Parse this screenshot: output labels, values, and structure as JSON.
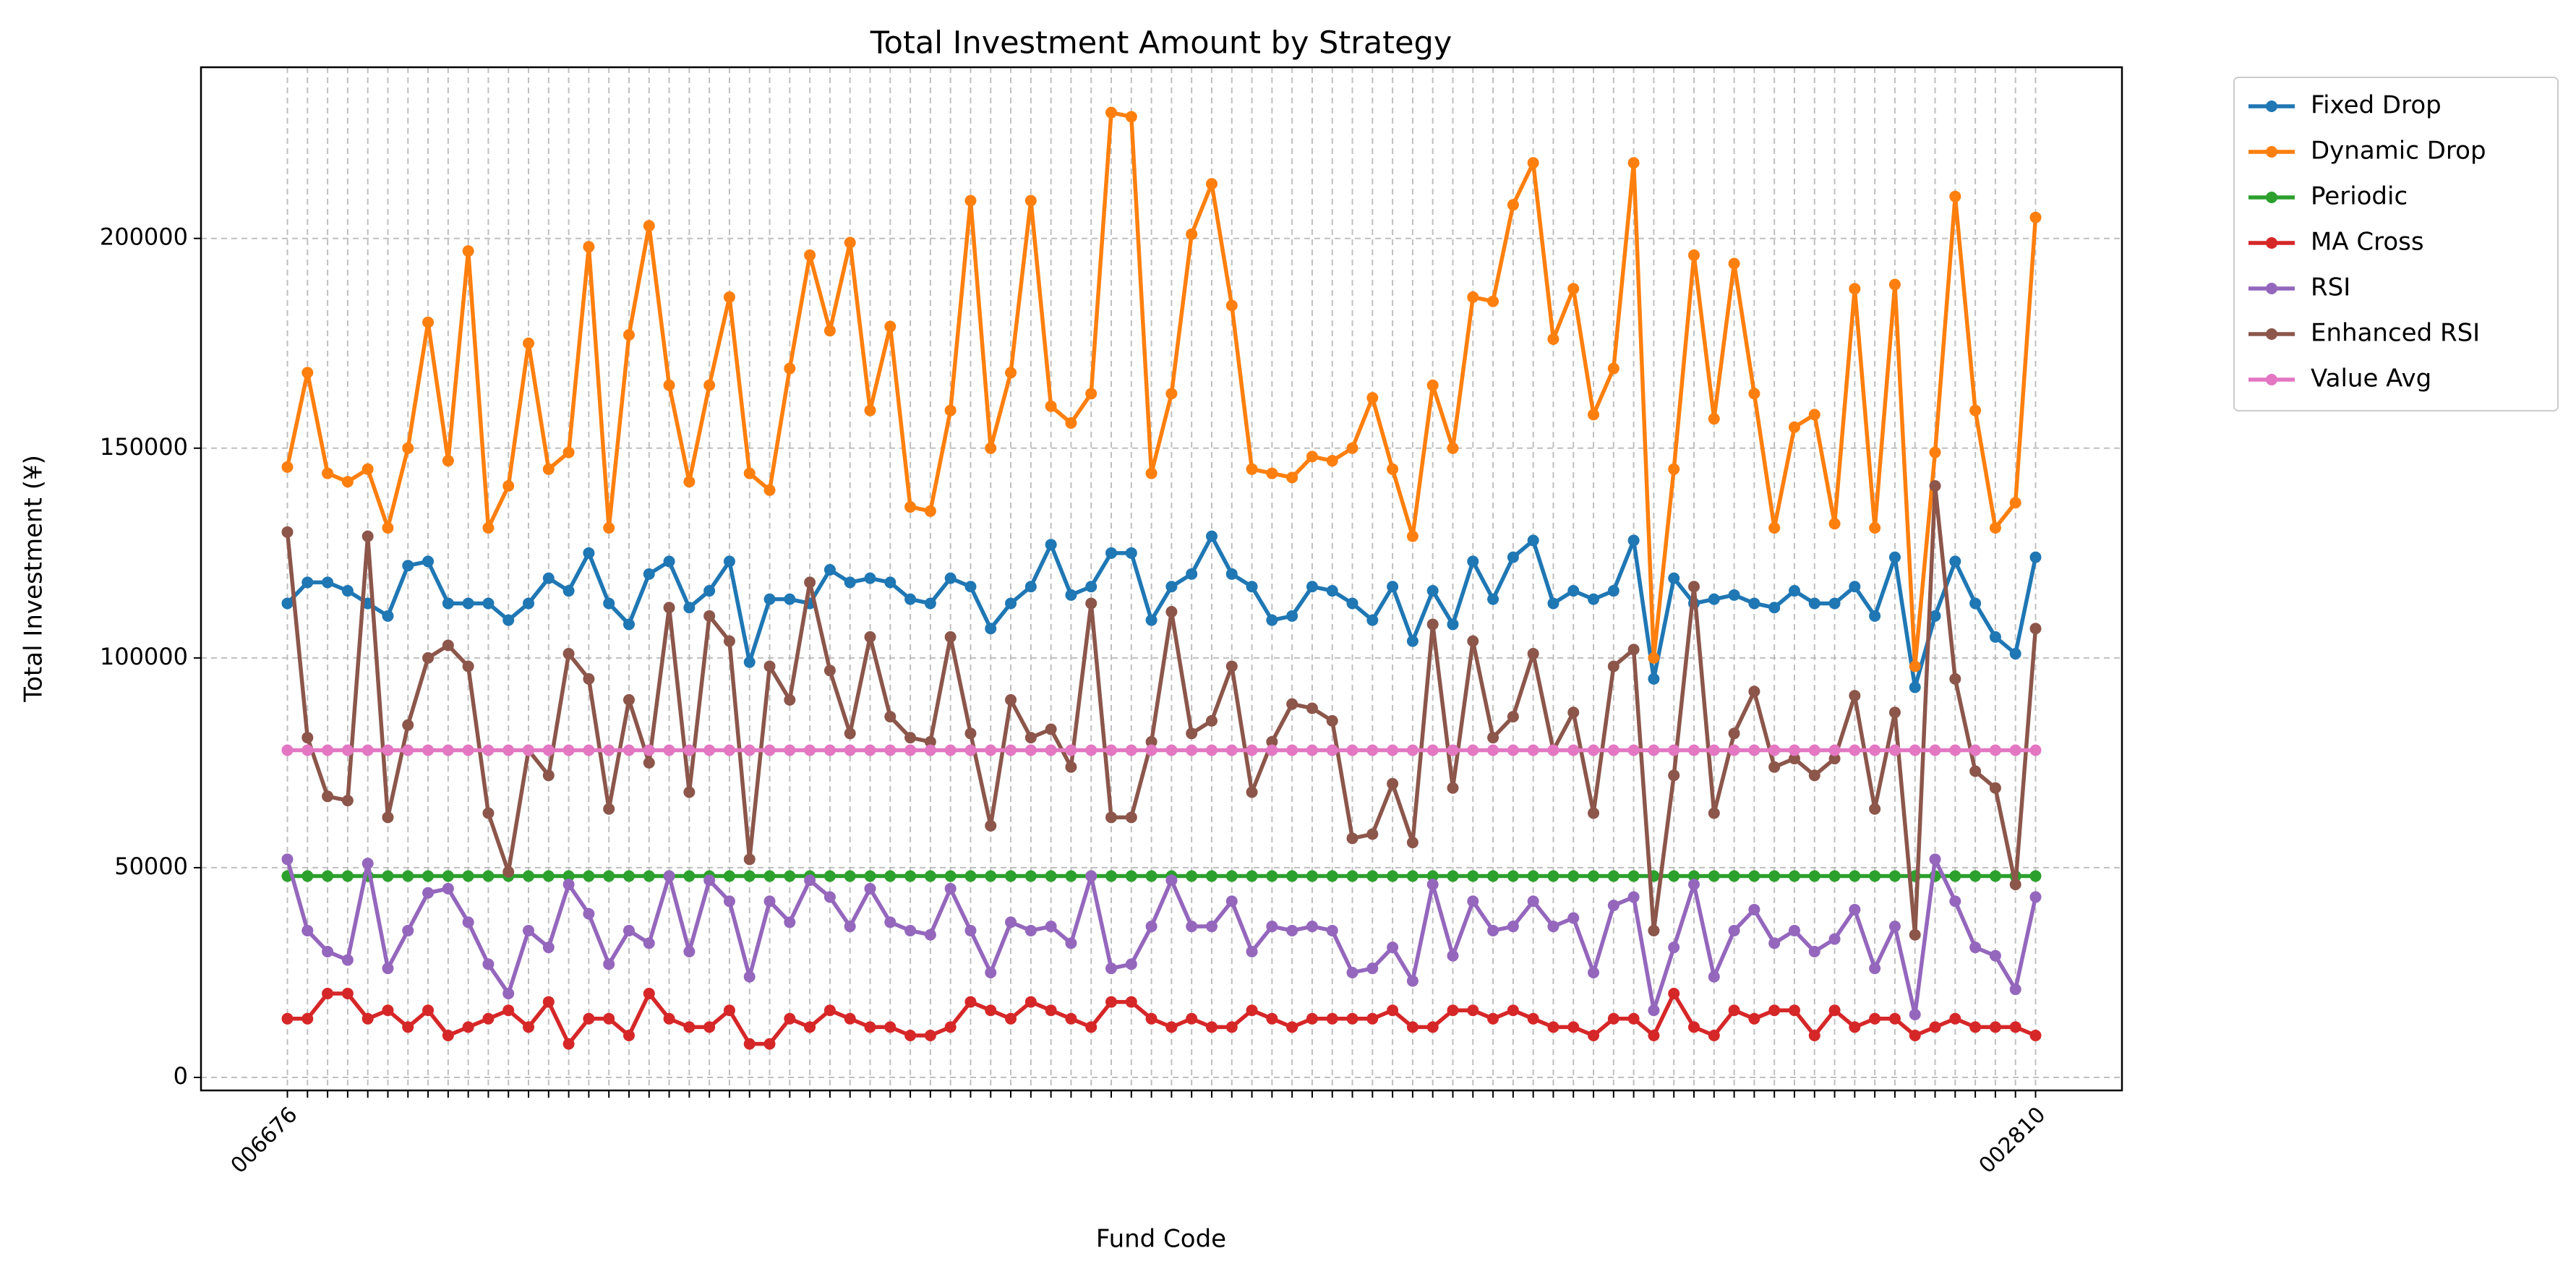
{
  "chart_data": {
    "type": "line",
    "title": "Total Investment Amount by Strategy",
    "xlabel": "Fund Code",
    "ylabel": "Total Investment (¥)",
    "categories": [
      "006676",
      null,
      null,
      null,
      null,
      null,
      null,
      null,
      null,
      null,
      null,
      null,
      null,
      null,
      null,
      null,
      null,
      null,
      null,
      null,
      null,
      null,
      null,
      null,
      null,
      null,
      null,
      null,
      null,
      null,
      null,
      null,
      null,
      null,
      null,
      null,
      null,
      null,
      null,
      null,
      null,
      null,
      null,
      null,
      null,
      null,
      null,
      null,
      null,
      null,
      null,
      null,
      null,
      null,
      null,
      null,
      null,
      null,
      null,
      null,
      null,
      null,
      null,
      null,
      null,
      null,
      null,
      null,
      null,
      null,
      null,
      null,
      null,
      null,
      null,
      null,
      null,
      null,
      null,
      null,
      null,
      null,
      null,
      null,
      null,
      null,
      null,
      "002810"
    ],
    "series": [
      {
        "name": "Fixed Drop",
        "color": "#1f77b4",
        "values": [
          113000,
          118000,
          118000,
          116000,
          113000,
          110000,
          122000,
          123000,
          113000,
          113000,
          113000,
          109000,
          113000,
          119000,
          116000,
          125000,
          113000,
          108000,
          120000,
          123000,
          112000,
          116000,
          123000,
          99000,
          114000,
          114000,
          113000,
          121000,
          118000,
          119000,
          118000,
          114000,
          113000,
          119000,
          117000,
          107000,
          113000,
          117000,
          127000,
          115000,
          117000,
          125000,
          125000,
          109000,
          117000,
          120000,
          129000,
          120000,
          117000,
          109000,
          110000,
          117000,
          116000,
          113000,
          109000,
          117000,
          104000,
          116000,
          108000,
          123000,
          114000,
          124000,
          128000,
          113000,
          116000,
          114000,
          116000,
          128000,
          95000,
          119000,
          113000,
          114000,
          115000,
          113000,
          112000,
          116000,
          113000,
          113000,
          117000,
          110000,
          124000,
          93000,
          110000,
          123000,
          113000,
          105000,
          101000,
          124000
        ]
      },
      {
        "name": "Dynamic Drop",
        "color": "#ff7f0e",
        "values": [
          145500,
          168000,
          144000,
          142000,
          145000,
          131000,
          150000,
          180000,
          147000,
          197000,
          131000,
          141000,
          175000,
          145000,
          149000,
          198000,
          131000,
          177000,
          203000,
          165000,
          142000,
          165000,
          186000,
          144000,
          140000,
          169000,
          196000,
          178000,
          199000,
          159000,
          179000,
          136000,
          135000,
          159000,
          209000,
          150000,
          168000,
          209000,
          160000,
          156000,
          163000,
          230000,
          229000,
          144000,
          163000,
          201000,
          213000,
          184000,
          145000,
          144000,
          143000,
          148000,
          147000,
          150000,
          162000,
          145000,
          129000,
          165000,
          150000,
          186000,
          185000,
          208000,
          218000,
          176000,
          188000,
          158000,
          169000,
          218000,
          100000,
          145000,
          196000,
          157000,
          194000,
          163000,
          131000,
          155000,
          158000,
          132000,
          188000,
          131000,
          189000,
          98000,
          149000,
          210000,
          159000,
          131000,
          137000,
          205000
        ]
      },
      {
        "name": "Periodic",
        "color": "#2ca02c",
        "values": [
          48000,
          48000,
          48000,
          48000,
          48000,
          48000,
          48000,
          48000,
          48000,
          48000,
          48000,
          48000,
          48000,
          48000,
          48000,
          48000,
          48000,
          48000,
          48000,
          48000,
          48000,
          48000,
          48000,
          48000,
          48000,
          48000,
          48000,
          48000,
          48000,
          48000,
          48000,
          48000,
          48000,
          48000,
          48000,
          48000,
          48000,
          48000,
          48000,
          48000,
          48000,
          48000,
          48000,
          48000,
          48000,
          48000,
          48000,
          48000,
          48000,
          48000,
          48000,
          48000,
          48000,
          48000,
          48000,
          48000,
          48000,
          48000,
          48000,
          48000,
          48000,
          48000,
          48000,
          48000,
          48000,
          48000,
          48000,
          48000,
          48000,
          48000,
          48000,
          48000,
          48000,
          48000,
          48000,
          48000,
          48000,
          48000,
          48000,
          48000,
          48000,
          48000,
          48000,
          48000,
          48000,
          48000,
          48000,
          48000
        ]
      },
      {
        "name": "MA Cross",
        "color": "#d62728",
        "values": [
          14000,
          14000,
          20000,
          20000,
          14000,
          16000,
          12000,
          16000,
          10000,
          12000,
          14000,
          16000,
          12000,
          18000,
          8000,
          14000,
          14000,
          10000,
          20000,
          14000,
          12000,
          12000,
          16000,
          8000,
          8000,
          14000,
          12000,
          16000,
          14000,
          12000,
          12000,
          10000,
          10000,
          12000,
          18000,
          16000,
          14000,
          18000,
          16000,
          14000,
          12000,
          18000,
          18000,
          14000,
          12000,
          14000,
          12000,
          12000,
          16000,
          14000,
          12000,
          14000,
          14000,
          14000,
          14000,
          16000,
          12000,
          12000,
          16000,
          16000,
          14000,
          16000,
          14000,
          12000,
          12000,
          10000,
          14000,
          14000,
          10000,
          20000,
          12000,
          10000,
          16000,
          14000,
          16000,
          16000,
          10000,
          16000,
          12000,
          14000,
          14000,
          10000,
          12000,
          14000,
          12000,
          12000,
          12000,
          10000
        ]
      },
      {
        "name": "RSI",
        "color": "#9467bd",
        "values": [
          52000,
          35000,
          30000,
          28000,
          51000,
          26000,
          35000,
          44000,
          45000,
          37000,
          27000,
          20000,
          35000,
          31000,
          46000,
          39000,
          27000,
          35000,
          32000,
          48000,
          30000,
          47000,
          42000,
          24000,
          42000,
          37000,
          47000,
          43000,
          36000,
          45000,
          37000,
          35000,
          34000,
          45000,
          35000,
          25000,
          37000,
          35000,
          36000,
          32000,
          48000,
          26000,
          27000,
          36000,
          47000,
          36000,
          36000,
          42000,
          30000,
          36000,
          35000,
          36000,
          35000,
          25000,
          26000,
          31000,
          23000,
          46000,
          29000,
          42000,
          35000,
          36000,
          42000,
          36000,
          38000,
          25000,
          41000,
          43000,
          16000,
          31000,
          46000,
          24000,
          35000,
          40000,
          32000,
          35000,
          30000,
          33000,
          40000,
          26000,
          36000,
          15000,
          52000,
          42000,
          31000,
          29000,
          21000,
          43000
        ]
      },
      {
        "name": "Enhanced RSI",
        "color": "#8c564b",
        "values": [
          130000,
          81000,
          67000,
          66000,
          129000,
          62000,
          84000,
          100000,
          103000,
          98000,
          63000,
          49000,
          78000,
          72000,
          101000,
          95000,
          64000,
          90000,
          75000,
          112000,
          68000,
          110000,
          104000,
          52000,
          98000,
          90000,
          118000,
          97000,
          82000,
          105000,
          86000,
          81000,
          80000,
          105000,
          82000,
          60000,
          90000,
          81000,
          83000,
          74000,
          113000,
          62000,
          62000,
          80000,
          111000,
          82000,
          85000,
          98000,
          68000,
          80000,
          89000,
          88000,
          85000,
          57000,
          58000,
          70000,
          56000,
          108000,
          69000,
          104000,
          81000,
          86000,
          101000,
          78000,
          87000,
          63000,
          98000,
          102000,
          35000,
          72000,
          117000,
          63000,
          82000,
          92000,
          74000,
          76000,
          72000,
          76000,
          91000,
          64000,
          87000,
          34000,
          141000,
          95000,
          73000,
          69000,
          46000,
          107000
        ]
      },
      {
        "name": "Value Avg",
        "color": "#e377c2",
        "values": [
          78000,
          78000,
          78000,
          78000,
          78000,
          78000,
          78000,
          78000,
          78000,
          78000,
          78000,
          78000,
          78000,
          78000,
          78000,
          78000,
          78000,
          78000,
          78000,
          78000,
          78000,
          78000,
          78000,
          78000,
          78000,
          78000,
          78000,
          78000,
          78000,
          78000,
          78000,
          78000,
          78000,
          78000,
          78000,
          78000,
          78000,
          78000,
          78000,
          78000,
          78000,
          78000,
          78000,
          78000,
          78000,
          78000,
          78000,
          78000,
          78000,
          78000,
          78000,
          78000,
          78000,
          78000,
          78000,
          78000,
          78000,
          78000,
          78000,
          78000,
          78000,
          78000,
          78000,
          78000,
          78000,
          78000,
          78000,
          78000,
          78000,
          78000,
          78000,
          78000,
          78000,
          78000,
          78000,
          78000,
          78000,
          78000,
          78000,
          78000,
          78000,
          78000,
          78000,
          78000,
          78000,
          78000,
          78000,
          78000
        ]
      }
    ],
    "ylim": [
      -3100,
      240800
    ],
    "yticks": [
      0,
      50000,
      100000,
      150000,
      200000
    ],
    "grid": true,
    "legend": "outside upper right"
  }
}
